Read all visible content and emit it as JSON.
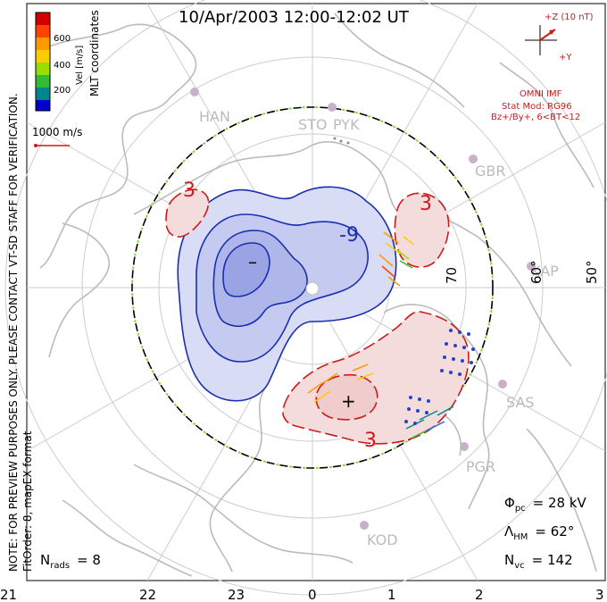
{
  "title": "10/Apr/2003 12:00-12:02 UT",
  "colorbar": {
    "label": "Vel [m/s]",
    "ticks": [
      "600",
      "400",
      "200"
    ],
    "colors": [
      "#d40000",
      "#ff4400",
      "#ff9900",
      "#ffcc00",
      "#99dd00",
      "#33bb33",
      "#008888",
      "#2266cc",
      "#0000cc"
    ]
  },
  "side_label": "MLT coordinates",
  "vector_scale": "1000 m/s",
  "note": "NOTE: FOR PREVIEW PURPOSES ONLY. PLEASE CONTACT VT-SD STAFF FOR VERIFICATION.",
  "fit_order": "FitOrder: 8, mapEX format",
  "imf": {
    "clock_label": "+Z (10 nT)",
    "y_label": "+Y",
    "source": "OMNI IMF",
    "stat_mod": "Stat Mod: RG96",
    "condition": "Bz+/By+, 6<BT<12"
  },
  "stations": [
    "HAN",
    "STO",
    "PYK",
    "GBR",
    "KAP",
    "SAS",
    "PGR",
    "KOD"
  ],
  "latitude_labels": [
    "70",
    "60°",
    "50°"
  ],
  "contour_labels": {
    "neg": "-9",
    "pos_top": "3",
    "pos_left": "3",
    "pos_bottom": "3"
  },
  "cell_markers": {
    "neg": "–",
    "pos": "+"
  },
  "stats": {
    "phi_symbol": "Φ",
    "phi_sub": "pc",
    "phi_value": "= 28 kV",
    "lambda_symbol": "Λ",
    "lambda_sub": "HM",
    "lambda_value": "= 62°",
    "nvc_symbol": "N",
    "nvc_sub": "vc",
    "nvc_value": "= 142",
    "nrads_symbol": "N",
    "nrads_sub": "rads",
    "nrads_value": "= 8"
  },
  "mlt_labels": [
    "21",
    "22",
    "23",
    "0",
    "1",
    "2",
    "3"
  ],
  "colors": {
    "negative_fill": "#d8dcf5",
    "negative_line": "#1a2eb0",
    "positive_fill": "#f5dcdc",
    "positive_line": "#cc1a1a",
    "coast": "#bbbbbb",
    "grid": "#cccccc",
    "imf_red": "#cc1a1a"
  }
}
